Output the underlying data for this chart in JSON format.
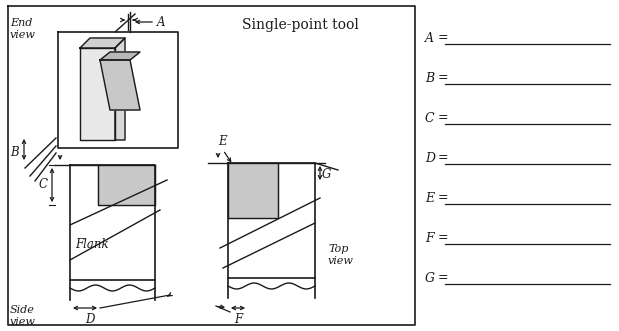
{
  "title": "Single-point tool",
  "labels": [
    "A",
    "B",
    "C",
    "D",
    "E",
    "F",
    "G"
  ],
  "end_view_label": "End\nview",
  "side_view_label": "Side\nview",
  "top_view_label": "Top\nview",
  "flank_label": "Flank",
  "bg_color": "#ffffff",
  "tool_fill": "#cccccc",
  "line_color": "#1a1a1a",
  "gray_fill": "#c8c8c8"
}
